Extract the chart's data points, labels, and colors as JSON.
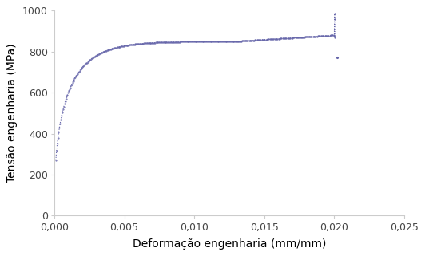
{
  "xlabel": "Deformação engenharia (mm/mm)",
  "ylabel": "Tensão engenharia (MPa)",
  "xlim": [
    0,
    0.025
  ],
  "ylim": [
    0,
    1000
  ],
  "xticks": [
    0.0,
    0.005,
    0.01,
    0.015,
    0.02,
    0.025
  ],
  "yticks": [
    0,
    200,
    400,
    600,
    800,
    1000
  ],
  "line_color": "#6666aa",
  "background_color": "#ffffff",
  "xlabel_fontsize": 10,
  "ylabel_fontsize": 10,
  "tick_fontsize": 9,
  "figsize": [
    5.32,
    3.21
  ],
  "dpi": 100
}
